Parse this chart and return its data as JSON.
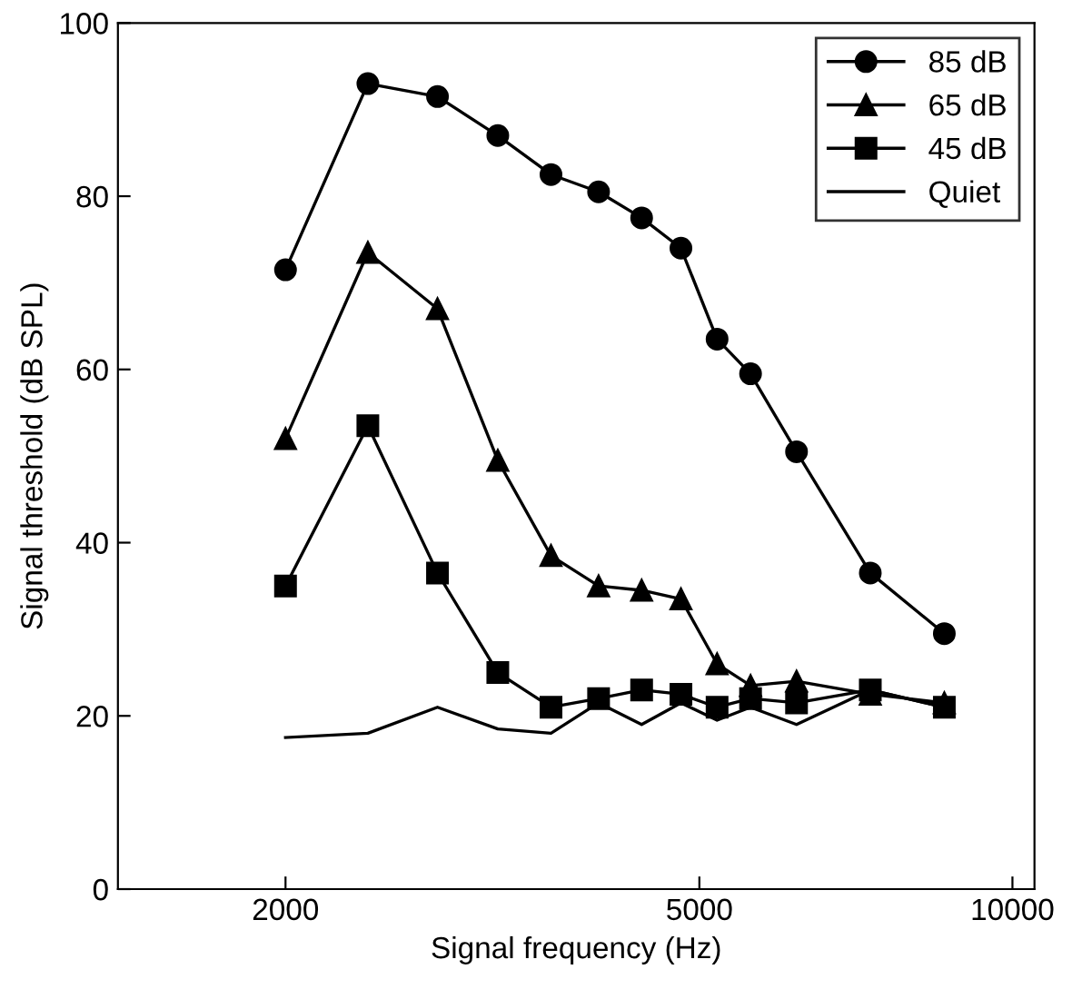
{
  "chart_data": {
    "type": "line",
    "xlabel": "Signal frequency (Hz)",
    "ylabel": "Signal threshold (dB SPL)",
    "log": "x",
    "xlim": [
      1380,
      10500
    ],
    "xticks": [
      2000,
      5000,
      10000
    ],
    "ylim": [
      0,
      100
    ],
    "yticks": [
      0,
      20,
      40,
      60,
      80,
      100
    ],
    "grid": false,
    "legend": "top right",
    "x": [
      2000,
      2400,
      2800,
      3200,
      3600,
      4000,
      4400,
      4800,
      5200,
      5600,
      6200,
      7300,
      8600
    ],
    "series": [
      {
        "name": "85 dB",
        "color": "#000000",
        "marker": "circle",
        "values": [
          71.5,
          93,
          91.5,
          87,
          82.5,
          80.5,
          77.5,
          74,
          63.5,
          59.5,
          50.5,
          36.5,
          29.5
        ]
      },
      {
        "name": "65 dB",
        "color": "#000000",
        "marker": "triangle",
        "values": [
          52,
          73.5,
          67,
          49.5,
          38.5,
          35,
          34.5,
          33.5,
          26,
          23.5,
          24,
          22.5,
          21.5
        ]
      },
      {
        "name": "45 dB",
        "color": "#000000",
        "marker": "square",
        "values": [
          35,
          53.5,
          36.5,
          25,
          21,
          22,
          23,
          22.5,
          21,
          22,
          21.5,
          23,
          21
        ]
      },
      {
        "name": "Quiet",
        "color": "#000000",
        "marker": "none",
        "values": [
          17.5,
          18,
          21,
          18.5,
          18,
          21.5,
          19,
          21.5,
          19.5,
          21,
          19,
          23,
          21
        ]
      }
    ]
  }
}
